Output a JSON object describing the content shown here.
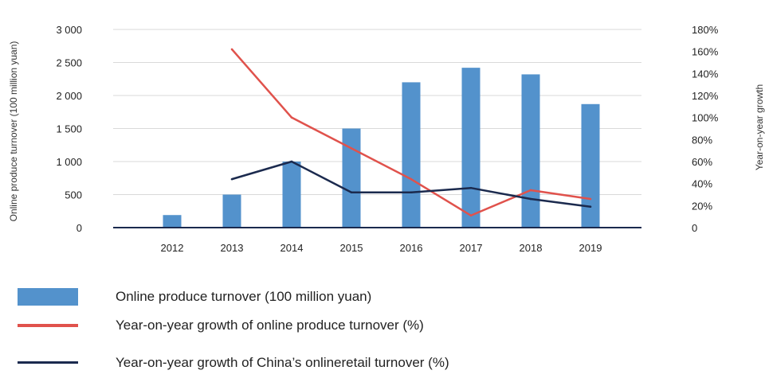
{
  "chart_data": {
    "type": "bar",
    "categories": [
      "2012",
      "2013",
      "2014",
      "2015",
      "2016",
      "2017",
      "2018",
      "2019"
    ],
    "series": [
      {
        "name": "Online produce turnover (100 million yuan)",
        "type": "bar",
        "axis": "left",
        "color": "#5392cc",
        "values": [
          190,
          500,
          1000,
          1500,
          2200,
          2420,
          2320,
          1870
        ]
      },
      {
        "name": "Year-on-year growth of online produce turnover (%)",
        "type": "line",
        "axis": "right",
        "color": "#e0524c",
        "values": [
          null,
          162,
          100,
          72,
          44,
          11,
          34,
          26
        ]
      },
      {
        "name": "Year-on-year growth of China’s onlineretail turnover (%)",
        "type": "line",
        "axis": "right",
        "color": "#1b2a4e",
        "values": [
          null,
          44,
          60,
          32,
          32,
          36,
          26,
          19
        ]
      }
    ],
    "ylabel_left": "Online produce turnover (100 million yuan)",
    "ylabel_right": "Year-on-year growth",
    "ylim_left": [
      0,
      3000
    ],
    "ylim_right": [
      0,
      180
    ],
    "yticks_left": [
      "0",
      "500",
      "1 000",
      "1 500",
      "2 000",
      "2 500",
      "3 000"
    ],
    "yticks_right": [
      "0",
      "20%",
      "40%",
      "60%",
      "80%",
      "100%",
      "120%",
      "140%",
      "160%",
      "180%"
    ],
    "grid": "horizontal",
    "legend_position": "bottom"
  },
  "legend": [
    {
      "label": "Online produce turnover (100 million yuan)",
      "swatch": "bar",
      "color": "#5392cc"
    },
    {
      "label": "Year-on-year growth of online produce turnover (%)",
      "swatch": "line",
      "color": "#e0524c"
    },
    {
      "label": "Year-on-year growth of China’s onlineretail turnover (%)",
      "swatch": "line",
      "color": "#1b2a4e"
    }
  ]
}
